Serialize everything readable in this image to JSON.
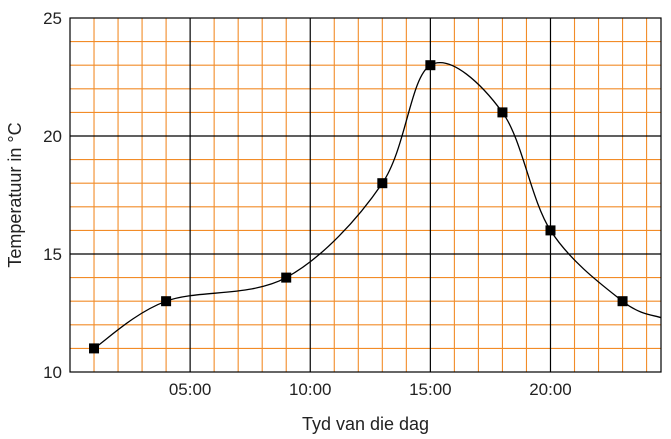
{
  "chart_data": {
    "type": "line",
    "title": "",
    "xlabel": "Tyd van die dag",
    "ylabel": "Temperatuur in °C",
    "xlim": [
      0,
      24.6
    ],
    "ylim": [
      10,
      25
    ],
    "x_ticks": [
      {
        "value": 5,
        "label": "05:00"
      },
      {
        "value": 10,
        "label": "10:00"
      },
      {
        "value": 15,
        "label": "15:00"
      },
      {
        "value": 20,
        "label": "20:00"
      }
    ],
    "y_ticks": [
      {
        "value": 10,
        "label": "10"
      },
      {
        "value": 15,
        "label": "15"
      },
      {
        "value": 20,
        "label": "20"
      },
      {
        "value": 25,
        "label": "25"
      }
    ],
    "minor_step_x": 1,
    "minor_step_y": 1,
    "grid": true,
    "colors": {
      "minor_grid": "#f28c28",
      "major_grid": "#000000",
      "line": "#000000",
      "marker": "#000000"
    },
    "series": [
      {
        "x": [
          1,
          4,
          9,
          13,
          15,
          18,
          20,
          23
        ],
        "y": [
          11,
          13,
          14,
          18,
          23,
          21,
          16,
          13
        ]
      }
    ],
    "curve_end": {
      "x": 24.6,
      "y": 12.3
    }
  }
}
